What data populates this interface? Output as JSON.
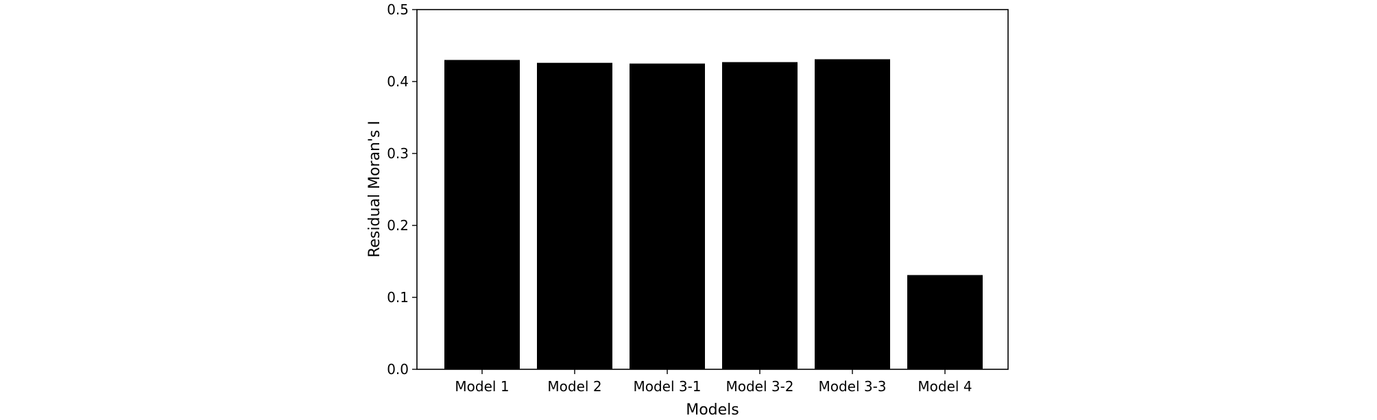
{
  "chart_data": {
    "type": "bar",
    "title": "",
    "xlabel": "Models",
    "ylabel": "Residual Moran's I",
    "categories": [
      "Model 1",
      "Model 2",
      "Model 3-1",
      "Model 3-2",
      "Model 3-3",
      "Model 4"
    ],
    "values": [
      0.43,
      0.426,
      0.425,
      0.427,
      0.431,
      0.131
    ],
    "ylim": [
      0,
      0.5
    ],
    "yticks": [
      0.0,
      0.1,
      0.2,
      0.3,
      0.4,
      0.5
    ],
    "ytick_labels": [
      "0.0",
      "0.1",
      "0.2",
      "0.3",
      "0.4",
      "0.5"
    ],
    "grid": false,
    "legend": "none",
    "colors": {
      "bar": "#000000",
      "axis": "#000000",
      "background": "#ffffff"
    }
  }
}
